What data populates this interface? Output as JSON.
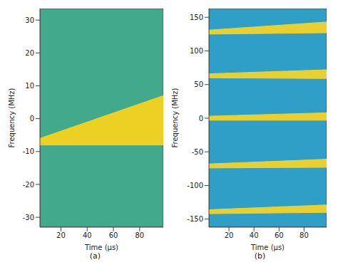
{
  "chart_data": [
    {
      "type": "spectrogram",
      "title": "(a)",
      "x_label": "Time (μs)",
      "y_label": "Frequency (MHz)",
      "color": "#43a98c",
      "xlim": [
        4,
        98
      ],
      "ylim": [
        -33,
        33.5
      ],
      "xticks": [
        20,
        40,
        60,
        80
      ],
      "yticks": [
        -30,
        -20,
        -10,
        0,
        10,
        20,
        30
      ],
      "x": [
        4,
        98
      ],
      "series": [
        {
          "color": "#f6d21e",
          "values": [
            [
              -8,
              -6
            ],
            [
              -8,
              7
            ]
          ]
        }
      ]
    },
    {
      "type": "spectrogram",
      "title": "(b)",
      "x_label": "Time (μs)",
      "y_label": "Frequency (MHz)",
      "color": "#2f9fc8",
      "xlim": [
        4,
        98
      ],
      "ylim": [
        -162,
        163
      ],
      "xticks": [
        20,
        40,
        60,
        80
      ],
      "yticks": [
        -150,
        -100,
        -50,
        0,
        50,
        100,
        150
      ],
      "x": [
        4,
        98
      ],
      "series": [
        {
          "color": "#f2d32a",
          "values": [
            [
              125,
              131
            ],
            [
              127,
              143
            ]
          ]
        },
        {
          "color": "#f2d32a",
          "values": [
            [
              60,
              66
            ],
            [
              59,
              72
            ]
          ]
        },
        {
          "color": "#f2d32a",
          "values": [
            [
              -3,
              3
            ],
            [
              -3,
              8
            ]
          ]
        },
        {
          "color": "#f2d32a",
          "values": [
            [
              -74,
              -68
            ],
            [
              -73,
              -61
            ]
          ]
        },
        {
          "color": "#f2d32a",
          "values": [
            [
              -142,
              -136
            ],
            [
              -140,
              -129
            ]
          ]
        }
      ]
    }
  ]
}
